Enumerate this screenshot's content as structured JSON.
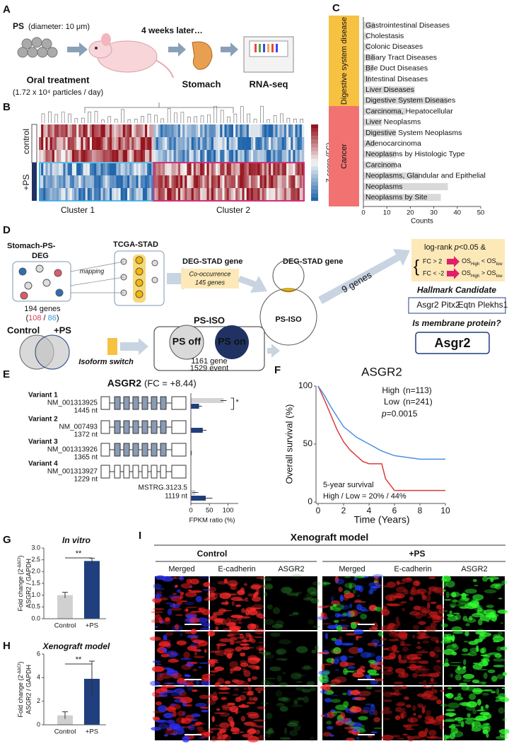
{
  "panels": {
    "a": {
      "label": "A",
      "ps": "PS",
      "diameter": "(diameter: 10 μm)",
      "later": "4 weeks later…",
      "oral": "Oral treatment",
      "dose": "(1.72 x 10⁴ particles / day)",
      "stomach": "Stomach",
      "rnaseq": "RNA-seq"
    },
    "b": {
      "label": "B",
      "rows": [
        "control",
        "+PS"
      ],
      "clusters": [
        "Cluster 1",
        "Cluster 2"
      ],
      "colorbar": "Z-score (FC)"
    },
    "d": {
      "label": "D",
      "deg": [
        "Stomach-PS-",
        "DEG"
      ],
      "tcga": "TCGA-STAD",
      "mapping": "mapping",
      "genes": "194 genes",
      "split": [
        "(",
        "108",
        " / ",
        "86",
        ")"
      ],
      "deg_stad": "DEG-STAD  gene",
      "cooc": [
        "Co-occurrence",
        "145 genes"
      ],
      "deg_stad2": "DEG-STAD  gene",
      "ps_iso2": "PS-ISO",
      "nine": "9 genes",
      "logrank": [
        "log-rank ",
        "p",
        "<0.05 &"
      ],
      "fc_up": "FC > 2",
      "os_up": [
        "OS",
        "High",
        " < OS",
        "low"
      ],
      "fc_down": "FC < -2",
      "os_down": [
        "OS",
        "High",
        " > OS",
        "low"
      ],
      "hallmark": "Hallmark Candidate",
      "cand_red": "Asgr2 Pitx2",
      "cand_blue": "Eqtn Plekhs1",
      "membrane": "Is membrane protein?",
      "final": "Asgr2",
      "control": "Control",
      "plus": "+PS",
      "switch": "Isoform switch",
      "ps_iso": "PS-ISO",
      "off": "PS off",
      "on": "PS on",
      "gene": "1161 gene",
      "event": "1529 event"
    },
    "i": {
      "label": "I",
      "title": "Xenograft model",
      "groups": [
        "Control",
        "+PS"
      ],
      "columns": [
        "Merged",
        "E-cadherin",
        "ASGR2",
        "Merged",
        "E-cadherin",
        "ASGR2"
      ]
    }
  },
  "chart_data": [
    {
      "type": "hbar",
      "label": "C",
      "groups": [
        "Digestive system disease",
        "Cancer"
      ],
      "group_colors": [
        "#f7c142",
        "#f27272"
      ],
      "categories": [
        "Gastrointestinal Diseases",
        "Cholestasis",
        "Colonic Diseases",
        "Biliary Tract Diseases",
        "Bile Duct Diseases",
        "Intestinal Diseases",
        "Liver Diseases",
        "Digestive System Diseases",
        "Carcinoma, Hepatocellular",
        "Liver Neoplasms",
        "Digestive System Neoplasms",
        "Adenocarcinoma",
        "Neoplasms by Histologic Type",
        "Carcinoma",
        "Neoplasms, Glandular and Epithelial",
        "Neoplasms",
        "Neoplasms by Site"
      ],
      "values": [
        5,
        2,
        3,
        5,
        4,
        3,
        22,
        36,
        18,
        8,
        14,
        5,
        14,
        14,
        24,
        36,
        33
      ],
      "color": "#d9d9d9",
      "xlim": [
        0,
        50
      ],
      "xticks": [
        0,
        10,
        20,
        30,
        40,
        50
      ],
      "xlabel": "Counts"
    },
    {
      "type": "hbar_err",
      "label": "E",
      "title": "ASGR2",
      "subtitle": "(FC = +8.44)",
      "categories": [
        "Variant 1",
        "Variant 2",
        "Variant 3",
        "Variant 4",
        null
      ],
      "ids": [
        "NM_001313925",
        "NM_007493",
        "NM_001313926",
        "NM_001313927",
        "MSTRG.3123.5"
      ],
      "lengths": [
        "1445 nt",
        "1372 nt",
        "1365 nt",
        "1229 nt",
        "1119 nt"
      ],
      "series": [
        {
          "color": "#d4d4d4",
          "values": [
            88,
            0,
            0,
            0,
            12
          ],
          "errors": [
            8,
            0,
            0,
            0,
            8
          ]
        },
        {
          "color": "#1f3f7f",
          "values": [
            22,
            32,
            2,
            0,
            40
          ],
          "errors": [
            8,
            10,
            1,
            0,
            18
          ]
        }
      ],
      "annotation": "*",
      "xlim": [
        0,
        120
      ],
      "xticks": [
        0,
        50,
        100
      ],
      "xlabel": "FPKM ratio (%)"
    },
    {
      "type": "line",
      "label": "F",
      "title": "ASGR2",
      "series": [
        {
          "name": "High",
          "n": "(n=113)",
          "color": "#e03a3a",
          "x": [
            0,
            0.5,
            1,
            1.5,
            2,
            2.5,
            3,
            3.5,
            4,
            5,
            5.3,
            6,
            10
          ],
          "values": [
            100,
            88,
            75,
            62,
            52,
            45,
            40,
            35,
            33,
            33,
            20,
            10,
            10
          ]
        },
        {
          "name": "Low",
          "n": "(n=241)",
          "color": "#4a90e2",
          "x": [
            0,
            0.5,
            1,
            2,
            3,
            4,
            5,
            6,
            8,
            10
          ],
          "values": [
            100,
            92,
            82,
            65,
            56,
            50,
            44,
            40,
            37,
            37
          ]
        }
      ],
      "pvalue": [
        "p",
        "=0.0015"
      ],
      "annotations": [
        "5-year survival",
        "High / Low = 20% / 44%"
      ],
      "xlim": [
        0,
        10
      ],
      "xticks": [
        0,
        2,
        4,
        6,
        8,
        10
      ],
      "ylim": [
        0,
        100
      ],
      "yticks": [
        0,
        50,
        100
      ],
      "xlabel": "Time (Years)",
      "ylabel": "Overall survival (%)"
    },
    {
      "type": "bar",
      "label": "G",
      "title": "In vitro",
      "categories": [
        "Control",
        "+PS"
      ],
      "values": [
        1,
        2.45
      ],
      "errors": [
        0.12,
        0.12
      ],
      "colors": [
        "#d0d0d0",
        "#1f3f7f"
      ],
      "ylim": [
        0,
        3
      ],
      "yticks": [
        {
          "value": 0,
          "label": "0.0"
        },
        0.5,
        {
          "value": 1,
          "label": "1.0"
        },
        1.5,
        {
          "value": 2,
          "label": "2.0"
        },
        2.5,
        {
          "value": 3,
          "label": "3.0"
        }
      ],
      "ylabel": [
        "Fold change (2",
        "-ΔΔCt",
        ")"
      ],
      "ylabel2": "ASGR2 / GAPDH",
      "annotation": "**"
    },
    {
      "type": "bar",
      "label": "H",
      "title": "Xenograft model",
      "categories": [
        "Control",
        "+PS"
      ],
      "values": [
        0.8,
        3.9
      ],
      "errors": [
        0.3,
        1.5
      ],
      "colors": [
        "#d0d0d0",
        "#1f3f7f"
      ],
      "ylim": [
        0,
        6
      ],
      "yticks": [
        0,
        2,
        4,
        6
      ],
      "ylabel": [
        "Fold change (2",
        "-ΔΔCt",
        ")"
      ],
      "ylabel2": "ASGR2 / GAPDH",
      "annotation": "**"
    }
  ]
}
